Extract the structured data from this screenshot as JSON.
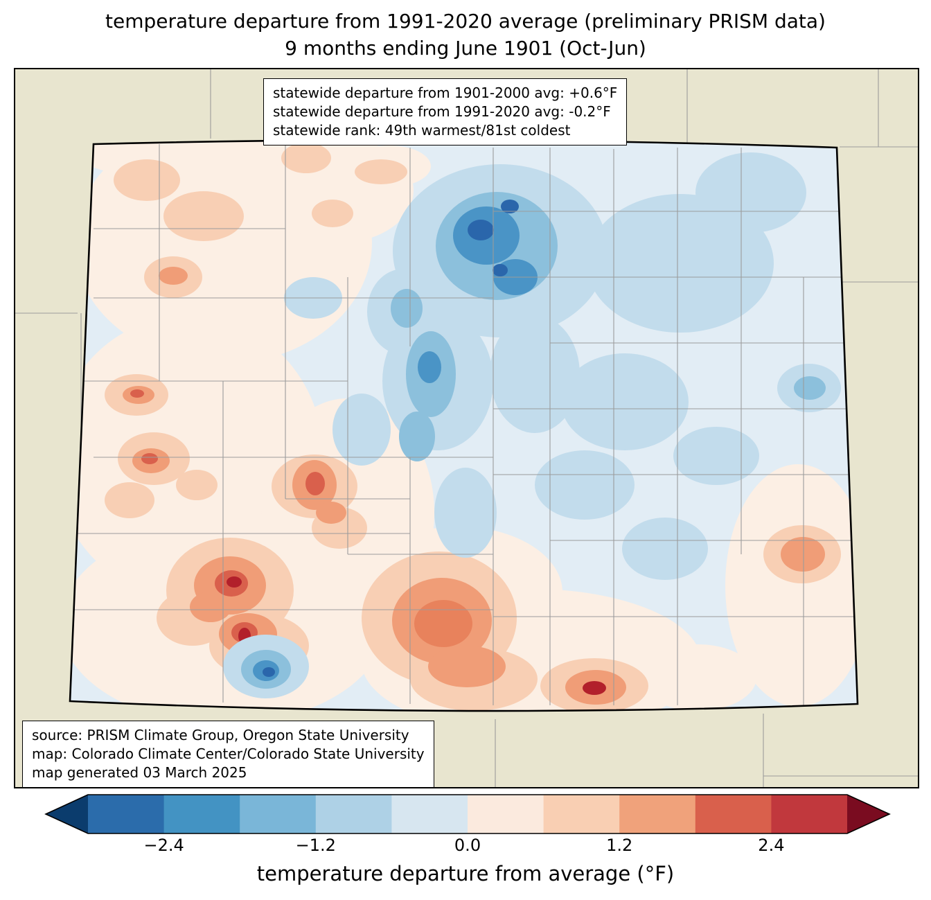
{
  "title": {
    "line1": "temperature departure from 1991-2020 average (preliminary PRISM data)",
    "line2": "9 months ending June 1901 (Oct-Jun)"
  },
  "stats_box": {
    "lines": [
      "statewide departure from 1901-2000 avg: +0.6°F",
      "statewide departure from 1991-2020 avg: -0.2°F",
      "statewide rank: 49th warmest/81st coldest"
    ]
  },
  "source_box": {
    "lines": [
      "source: PRISM Climate Group, Oregon State University",
      "map: Colorado Climate Center/Colorado State University",
      "map generated 03 March 2025"
    ]
  },
  "map": {
    "region": "Colorado",
    "background_color": "#e8e5cf",
    "state_border_color": "#000000",
    "county_line_color": "#9b9b9b"
  },
  "colorbar": {
    "label": "temperature departure from average (°F)",
    "ticks": [
      "−2.4",
      "−1.2",
      "0.0",
      "1.2",
      "2.4"
    ],
    "tick_values": [
      -2.4,
      -1.2,
      0.0,
      1.2,
      2.4
    ],
    "range": [
      -3.0,
      3.0
    ],
    "segment_width_f": 0.6,
    "left_arrow_color": "#0b3c6d",
    "right_arrow_color": "#7a0c20",
    "segment_colors": [
      "#2b6cab",
      "#4393c3",
      "#7ab6d8",
      "#aed1e6",
      "#d7e6f0",
      "#fbeade",
      "#f9cfb3",
      "#f0a27b",
      "#d9604c",
      "#c1383d"
    ]
  }
}
